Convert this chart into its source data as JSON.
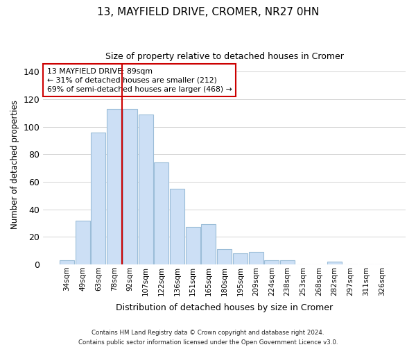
{
  "title": "13, MAYFIELD DRIVE, CROMER, NR27 0HN",
  "subtitle": "Size of property relative to detached houses in Cromer",
  "xlabel": "Distribution of detached houses by size in Cromer",
  "ylabel": "Number of detached properties",
  "bar_labels": [
    "34sqm",
    "49sqm",
    "63sqm",
    "78sqm",
    "92sqm",
    "107sqm",
    "122sqm",
    "136sqm",
    "151sqm",
    "165sqm",
    "180sqm",
    "195sqm",
    "209sqm",
    "224sqm",
    "238sqm",
    "253sqm",
    "268sqm",
    "282sqm",
    "297sqm",
    "311sqm",
    "326sqm"
  ],
  "bar_values": [
    3,
    32,
    96,
    113,
    113,
    109,
    74,
    55,
    27,
    29,
    11,
    8,
    9,
    3,
    3,
    0,
    0,
    2,
    0,
    0,
    0
  ],
  "bar_color": "#ccdff5",
  "bar_edge_color": "#9bbdd8",
  "vline_x_index": 4,
  "vline_color": "#cc0000",
  "ylim": [
    0,
    145
  ],
  "yticks": [
    0,
    20,
    40,
    60,
    80,
    100,
    120,
    140
  ],
  "annotation_text_line1": "13 MAYFIELD DRIVE: 89sqm",
  "annotation_text_line2": "← 31% of detached houses are smaller (212)",
  "annotation_text_line3": "69% of semi-detached houses are larger (468) →",
  "footer_line1": "Contains HM Land Registry data © Crown copyright and database right 2024.",
  "footer_line2": "Contains public sector information licensed under the Open Government Licence v3.0.",
  "background_color": "#ffffff",
  "grid_color": "#cccccc"
}
